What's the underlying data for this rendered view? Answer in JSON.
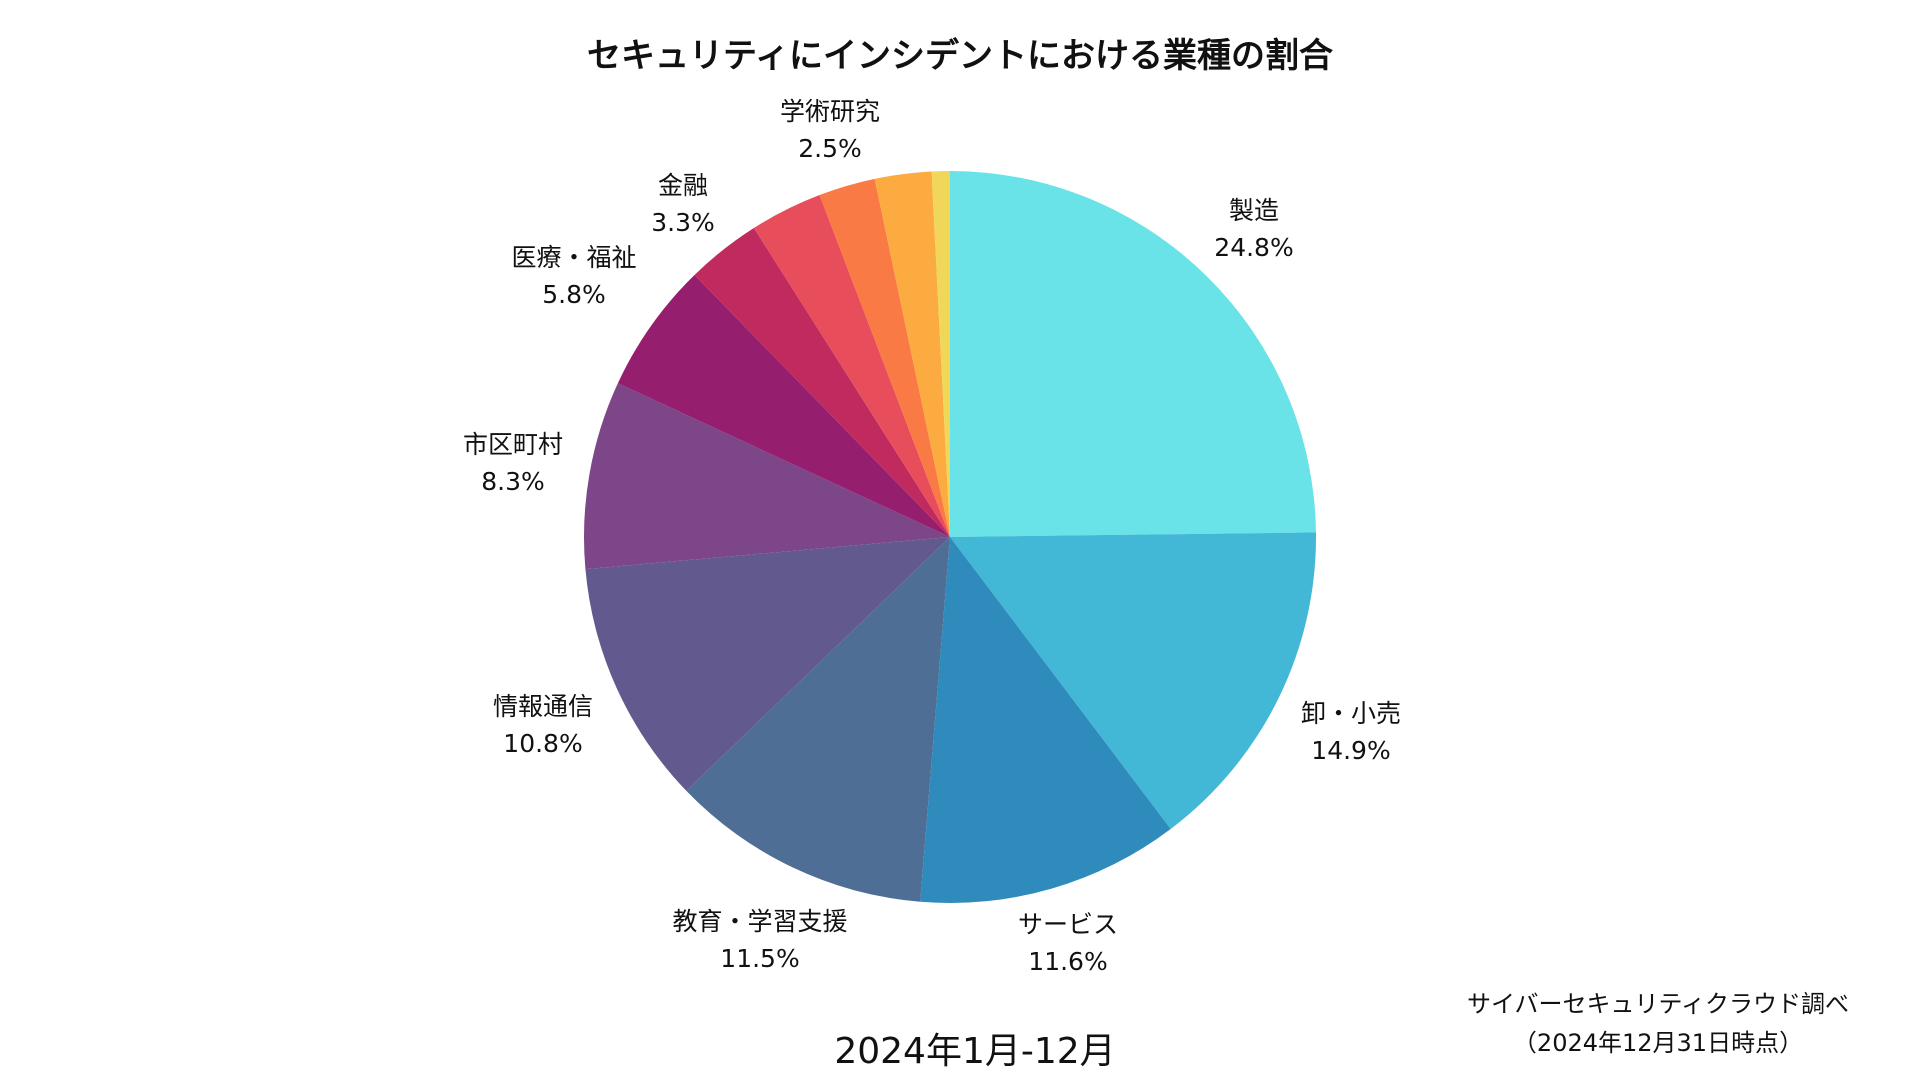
{
  "chart_data": {
    "type": "pie",
    "title": "セキュリティにインシデントにおける業種の割合",
    "start_angle": "top",
    "direction": "clockwise",
    "slices": [
      {
        "label": "製造",
        "value": 24.8,
        "value_label": "24.8%",
        "color": "#6AE3E8"
      },
      {
        "label": "卸・小売",
        "value": 14.9,
        "value_label": "14.9%",
        "color": "#42B7D6"
      },
      {
        "label": "サービス",
        "value": 11.6,
        "value_label": "11.6%",
        "color": "#2E8BBB"
      },
      {
        "label": "教育・学習支援",
        "value": 11.5,
        "value_label": "11.5%",
        "color": "#4E6E96"
      },
      {
        "label": "情報通信",
        "value": 10.8,
        "value_label": "10.8%",
        "color": "#625A8E"
      },
      {
        "label": "市区町村",
        "value": 8.3,
        "value_label": "8.3%",
        "color": "#7D4688"
      },
      {
        "label": "医療・福祉",
        "value": 5.8,
        "value_label": "5.8%",
        "color": "#951F6E"
      },
      {
        "label": "金融",
        "value": 3.3,
        "value_label": "3.3%",
        "color": "#C02A5E"
      },
      {
        "label": "",
        "value": 3.2,
        "value_label": "",
        "color": "#E84D5B"
      },
      {
        "label": "",
        "value": 2.5,
        "value_label": "",
        "color": "#FA7A45"
      },
      {
        "label": "学術研究",
        "value": 2.5,
        "value_label": "2.5%",
        "color": "#FCAB40"
      },
      {
        "label": "",
        "value": 0.8,
        "value_label": "",
        "color": "#F0D75A"
      }
    ],
    "legend": "none"
  },
  "footer": {
    "period": "2024年1月-12月",
    "source_line1": "サイバーセキュリティクラウド調べ",
    "source_line2": "（2024年12月31日時点）"
  }
}
